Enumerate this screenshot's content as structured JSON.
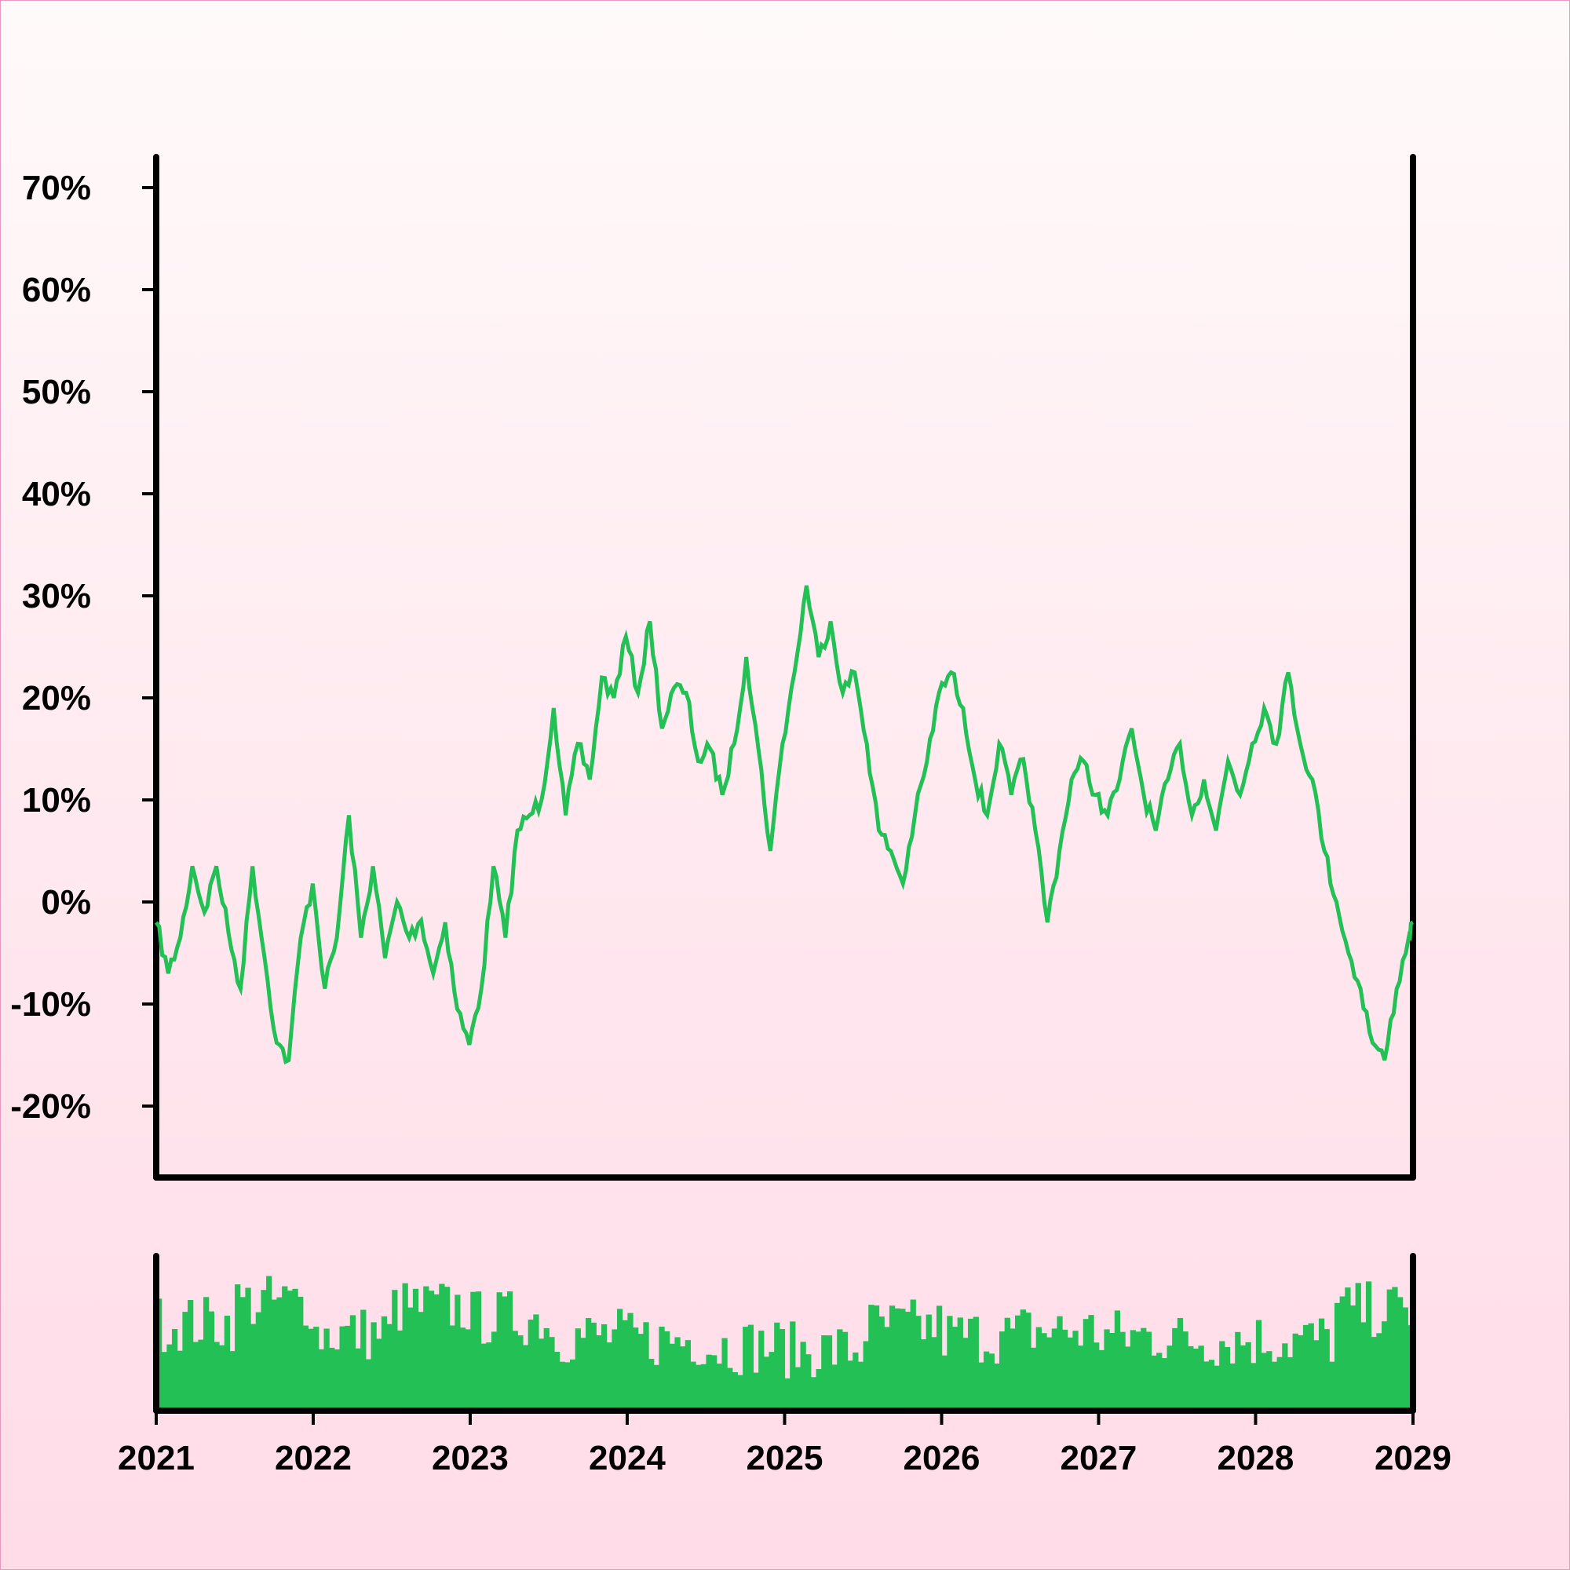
{
  "colors": {
    "line": "#22c055",
    "volume": "#22c055",
    "axis": "#000000",
    "background_top": "#fffafa",
    "background_bottom": "#ffdce8"
  },
  "chart_data": [
    {
      "type": "line",
      "panel": "price",
      "title": "",
      "xlabel": "",
      "ylabel": "",
      "grid": false,
      "legend": "none",
      "xlim": [
        "2021-01-01",
        "2029-01-01"
      ],
      "ylim": [
        -27,
        73
      ],
      "y_unit": "%",
      "y_ticks": [
        -20,
        -10,
        0,
        10,
        20,
        30,
        40,
        50,
        60,
        70
      ],
      "y_tick_labels": [
        "-20%",
        "-10%",
        "0%",
        "10%",
        "20%",
        "30%",
        "40%",
        "50%",
        "60%",
        "70%"
      ],
      "series": [
        {
          "points": [
            [
              "2021-01-01",
              -2
            ],
            [
              "2021-01-29",
              -7
            ],
            [
              "2021-02-26",
              -3.5
            ],
            [
              "2021-03-26",
              3.5
            ],
            [
              "2021-04-23",
              -1
            ],
            [
              "2021-05-21",
              3.5
            ],
            [
              "2021-06-18",
              -3
            ],
            [
              "2021-07-16",
              -8.5
            ],
            [
              "2021-08-13",
              3.5
            ],
            [
              "2021-09-10",
              -5.5
            ],
            [
              "2021-10-08",
              -13.8
            ],
            [
              "2021-11-05",
              -15.5
            ],
            [
              "2021-12-03",
              -3.5
            ],
            [
              "2021-12-31",
              1.8
            ],
            [
              "2022-01-28",
              -8.5
            ],
            [
              "2022-02-25",
              -3.5
            ],
            [
              "2022-03-25",
              8.5
            ],
            [
              "2022-04-22",
              -3.5
            ],
            [
              "2022-05-20",
              3.5
            ],
            [
              "2022-06-17",
              -5.5
            ],
            [
              "2022-07-15",
              0
            ],
            [
              "2022-08-12",
              -3.5
            ],
            [
              "2022-09-09",
              -1.8
            ],
            [
              "2022-10-07",
              -7
            ],
            [
              "2022-11-04",
              -2
            ],
            [
              "2022-12-02",
              -10.5
            ],
            [
              "2022-12-30",
              -14
            ],
            [
              "2023-01-27",
              -8.5
            ],
            [
              "2023-02-24",
              3.5
            ],
            [
              "2023-03-24",
              -3.5
            ],
            [
              "2023-04-21",
              7
            ],
            [
              "2023-05-19",
              8.5
            ],
            [
              "2023-06-16",
              10
            ],
            [
              "2023-07-14",
              19
            ],
            [
              "2023-08-11",
              8.5
            ],
            [
              "2023-09-08",
              15.5
            ],
            [
              "2023-10-06",
              12
            ],
            [
              "2023-11-03",
              22
            ],
            [
              "2023-12-01",
              20
            ],
            [
              "2023-12-29",
              26
            ],
            [
              "2024-01-26",
              20.5
            ],
            [
              "2024-02-23",
              27.5
            ],
            [
              "2024-03-22",
              17
            ],
            [
              "2024-04-19",
              21
            ],
            [
              "2024-05-17",
              20.5
            ],
            [
              "2024-06-14",
              13.8
            ],
            [
              "2024-07-12",
              15
            ],
            [
              "2024-08-09",
              10.5
            ],
            [
              "2024-09-06",
              15.5
            ],
            [
              "2024-10-04",
              24
            ],
            [
              "2024-11-01",
              15
            ],
            [
              "2024-11-29",
              5
            ],
            [
              "2024-12-27",
              15.5
            ],
            [
              "2025-01-24",
              22.5
            ],
            [
              "2025-02-21",
              31
            ],
            [
              "2025-03-21",
              24
            ],
            [
              "2025-04-18",
              27.5
            ],
            [
              "2025-05-16",
              20.5
            ],
            [
              "2025-06-13",
              22.5
            ],
            [
              "2025-07-11",
              15.5
            ],
            [
              "2025-08-08",
              7
            ],
            [
              "2025-09-05",
              5
            ],
            [
              "2025-10-03",
              1.8
            ],
            [
              "2025-10-31",
              8.5
            ],
            [
              "2025-11-28",
              13.8
            ],
            [
              "2025-12-26",
              20.5
            ],
            [
              "2026-01-23",
              22.5
            ],
            [
              "2026-02-20",
              19
            ],
            [
              "2026-03-20",
              12
            ],
            [
              "2026-04-17",
              8.5
            ],
            [
              "2026-05-15",
              15.5
            ],
            [
              "2026-06-12",
              10.5
            ],
            [
              "2026-07-10",
              14
            ],
            [
              "2026-08-07",
              7
            ],
            [
              "2026-09-04",
              -2
            ],
            [
              "2026-10-02",
              5
            ],
            [
              "2026-10-30",
              12
            ],
            [
              "2026-11-27",
              13.8
            ],
            [
              "2026-12-25",
              10.5
            ],
            [
              "2027-01-22",
              8.5
            ],
            [
              "2027-02-19",
              12
            ],
            [
              "2027-03-19",
              17
            ],
            [
              "2027-04-16",
              10.5
            ],
            [
              "2027-05-14",
              7
            ],
            [
              "2027-06-11",
              12
            ],
            [
              "2027-07-09",
              15.5
            ],
            [
              "2027-08-06",
              8.5
            ],
            [
              "2027-09-03",
              12
            ],
            [
              "2027-10-01",
              7
            ],
            [
              "2027-10-29",
              13.8
            ],
            [
              "2027-11-26",
              10.5
            ],
            [
              "2027-12-24",
              15.5
            ],
            [
              "2028-01-21",
              19
            ],
            [
              "2028-02-18",
              15.5
            ],
            [
              "2028-03-17",
              22.5
            ],
            [
              "2028-04-14",
              15.5
            ],
            [
              "2028-05-12",
              12
            ],
            [
              "2028-06-09",
              5
            ],
            [
              "2028-07-07",
              0
            ],
            [
              "2028-08-04",
              -5
            ],
            [
              "2028-09-01",
              -8.5
            ],
            [
              "2028-09-29",
              -13.8
            ],
            [
              "2028-10-27",
              -15.5
            ],
            [
              "2028-11-24",
              -8.5
            ],
            [
              "2028-12-22",
              -3.5
            ],
            [
              "2029-01-01",
              -2
            ]
          ]
        }
      ]
    },
    {
      "type": "bar",
      "panel": "volume",
      "title": "",
      "xlabel": "",
      "ylabel": "",
      "grid": false,
      "legend": "none",
      "xlim": [
        "2021-01-01",
        "2029-01-01"
      ],
      "ylim": [
        0,
        1.2
      ],
      "bar_count": 240,
      "mean_value_by_period": [
        {
          "start": "2021-01-01",
          "end": "2021-07-01",
          "value": 0.68
        },
        {
          "start": "2021-07-01",
          "end": "2022-01-01",
          "value": 0.84
        },
        {
          "start": "2022-01-01",
          "end": "2022-07-01",
          "value": 0.6
        },
        {
          "start": "2022-07-01",
          "end": "2023-01-01",
          "value": 0.8
        },
        {
          "start": "2023-01-01",
          "end": "2023-07-01",
          "value": 0.72
        },
        {
          "start": "2023-07-01",
          "end": "2024-01-01",
          "value": 0.58
        },
        {
          "start": "2024-01-01",
          "end": "2024-07-01",
          "value": 0.55
        },
        {
          "start": "2024-07-01",
          "end": "2025-01-01",
          "value": 0.5
        },
        {
          "start": "2025-01-01",
          "end": "2025-07-01",
          "value": 0.47
        },
        {
          "start": "2025-07-01",
          "end": "2026-01-01",
          "value": 0.65
        },
        {
          "start": "2026-01-01",
          "end": "2026-07-01",
          "value": 0.58
        },
        {
          "start": "2026-07-01",
          "end": "2027-01-01",
          "value": 0.62
        },
        {
          "start": "2027-01-01",
          "end": "2027-07-01",
          "value": 0.58
        },
        {
          "start": "2027-07-01",
          "end": "2028-01-01",
          "value": 0.55
        },
        {
          "start": "2028-01-01",
          "end": "2028-07-01",
          "value": 0.55
        },
        {
          "start": "2028-07-01",
          "end": "2029-01-01",
          "value": 0.78
        }
      ],
      "x_ticks": [
        "2021-01-01",
        "2022-01-01",
        "2023-01-01",
        "2024-01-01",
        "2025-01-01",
        "2026-01-01",
        "2027-01-01",
        "2028-01-01",
        "2029-01-01"
      ],
      "x_tick_labels": [
        "2021",
        "2022",
        "2023",
        "2024",
        "2025",
        "2026",
        "2027",
        "2028",
        "2029"
      ]
    }
  ]
}
